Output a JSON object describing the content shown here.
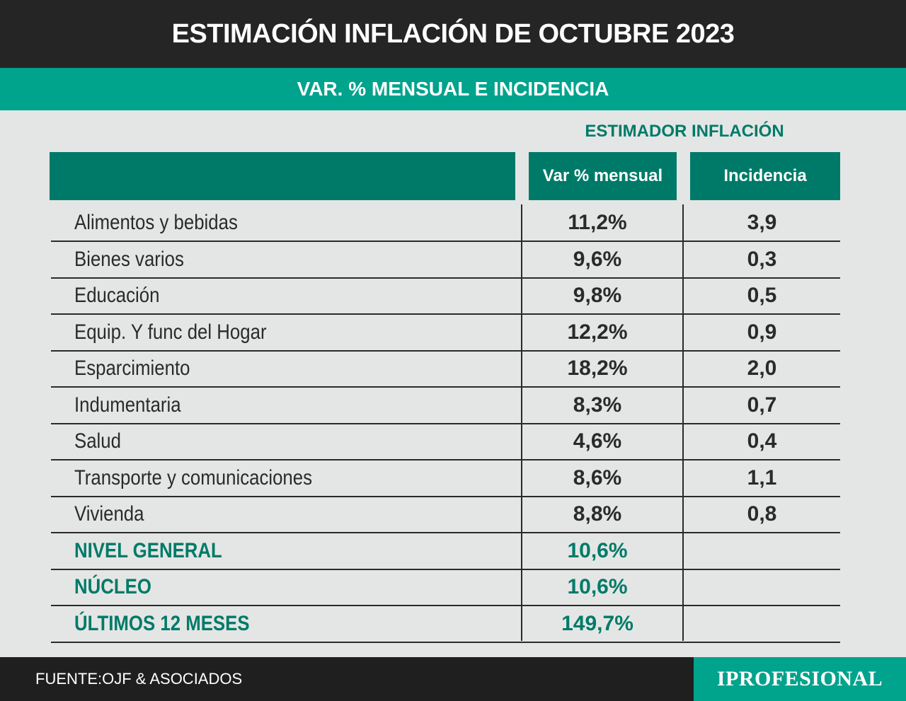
{
  "header": {
    "title": "ESTIMACIÓN INFLACIÓN DE OCTUBRE 2023",
    "subtitle": "VAR. % MENSUAL E INCIDENCIA",
    "estimator_label": "ESTIMADOR INFLACIÓN"
  },
  "chart_data": {
    "type": "table",
    "columns": [
      "Var % mensual",
      "Incidencia"
    ],
    "rows": [
      {
        "name": "Alimentos y bebidas",
        "var": "11,2%",
        "incidencia": "3,9",
        "summary": false
      },
      {
        "name": "Bienes varios",
        "var": "9,6%",
        "incidencia": "0,3",
        "summary": false
      },
      {
        "name": "Educación",
        "var": "9,8%",
        "incidencia": "0,5",
        "summary": false
      },
      {
        "name": "Equip. Y func del Hogar",
        "var": "12,2%",
        "incidencia": "0,9",
        "summary": false
      },
      {
        "name": "Esparcimiento",
        "var": "18,2%",
        "incidencia": "2,0",
        "summary": false
      },
      {
        "name": "Indumentaria",
        "var": "8,3%",
        "incidencia": "0,7",
        "summary": false
      },
      {
        "name": "Salud",
        "var": "4,6%",
        "incidencia": "0,4",
        "summary": false
      },
      {
        "name": "Transporte y comunicaciones",
        "var": "8,6%",
        "incidencia": "1,1",
        "summary": false
      },
      {
        "name": "Vivienda",
        "var": "8,8%",
        "incidencia": "0,8",
        "summary": false
      },
      {
        "name": "NIVEL GENERAL",
        "var": "10,6%",
        "incidencia": "",
        "summary": true
      },
      {
        "name": "NÚCLEO",
        "var": "10,6%",
        "incidencia": "",
        "summary": true
      },
      {
        "name": "ÚLTIMOS 12 MESES",
        "var": "149,7%",
        "incidencia": "",
        "summary": true
      }
    ]
  },
  "footer": {
    "source": "FUENTE:OJF & ASOCIADOS",
    "brand": "IPROFESIONAL"
  },
  "colors": {
    "title_bg": "#252525",
    "accent": "#00a38c",
    "dark_green": "#007a68",
    "background": "#e4e6e5"
  }
}
